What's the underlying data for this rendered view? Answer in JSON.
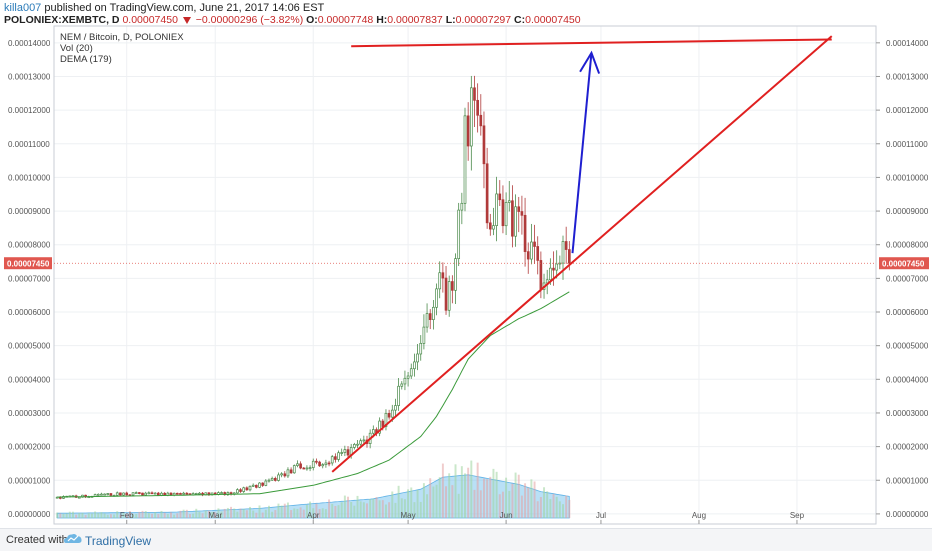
{
  "header": {
    "author": "killa007",
    "published_text": "published on TradingView.com, June 21, 2017 14:06 EST",
    "symbol": "POLONIEX:XEMBTC, D",
    "last_price": "0.00007450",
    "change": "−0.00000296 (−3.82%)",
    "o_label": "O:",
    "o_value": "0.00007748",
    "h_label": "H:",
    "h_value": "0.00007837",
    "l_label": "L:",
    "l_value": "0.00007297",
    "c_label": "C:",
    "c_value": "0.00007450"
  },
  "legend": {
    "title": "NEM / Bitcoin, D, POLONIEX",
    "vol": "Vol (20)",
    "dema": "DEMA (179)"
  },
  "footer": {
    "created_with": "Created with",
    "brand": "TradingView"
  },
  "colors": {
    "up": "#4a8a4a",
    "down": "#b03a3a",
    "trendline": "#e02020",
    "arrow": "#1f1fd0",
    "dema": "#3a9a3a",
    "volume_area": "#7fc6ef",
    "price_tag": "#e0574f"
  },
  "chart_data": {
    "type": "candlestick",
    "title": "NEM / Bitcoin, D, POLONIEX",
    "y_ticks": [
      "0.00014000",
      "0.00013000",
      "0.00012000",
      "0.00011000",
      "0.00010000",
      "0.00009000",
      "0.00008000",
      "0.00007000",
      "0.00006000",
      "0.00005000",
      "0.00004000",
      "0.00003000",
      "0.00002000",
      "0.00001000",
      "0.00000000"
    ],
    "y_tick_values": [
      0.00014,
      0.00013,
      0.00012,
      0.00011,
      0.0001,
      9e-05,
      8e-05,
      7e-05,
      6e-05,
      5e-05,
      4e-05,
      3e-05,
      2e-05,
      1e-05,
      0
    ],
    "ylim": [
      -3e-06,
      0.000145
    ],
    "x_ticks": [
      "Feb",
      "Mar",
      "Apr",
      "May",
      "Jun",
      "Jul",
      "Aug",
      "Sep"
    ],
    "x_tick_dates": [
      "2017-02-01",
      "2017-03-01",
      "2017-04-01",
      "2017-05-01",
      "2017-06-01",
      "2017-07-01",
      "2017-08-01",
      "2017-09-01"
    ],
    "xlim": [
      "2017-01-09",
      "2017-09-26"
    ],
    "last_price_label": "0.00007450",
    "last_price": 7.45e-05,
    "price_series": {
      "name": "XEMBTC",
      "start_date": "2017-01-10",
      "end_date": "2017-06-21",
      "anchors": [
        [
          "2017-01-10",
          4.8e-06
        ],
        [
          "2017-01-31",
          6e-06
        ],
        [
          "2017-02-20",
          5.8e-06
        ],
        [
          "2017-03-05",
          6e-06
        ],
        [
          "2017-03-18",
          9.5e-06
        ],
        [
          "2017-03-27",
          1.4e-05
        ],
        [
          "2017-04-03",
          1.5e-05
        ],
        [
          "2017-04-10",
          1.75e-05
        ],
        [
          "2017-04-17",
          2.1e-05
        ],
        [
          "2017-04-23",
          2.7e-05
        ],
        [
          "2017-04-28",
          3.6e-05
        ],
        [
          "2017-05-01",
          3.9e-05
        ],
        [
          "2017-05-04",
          4.5e-05
        ],
        [
          "2017-05-07",
          5.6e-05
        ],
        [
          "2017-05-10",
          7e-05
        ],
        [
          "2017-05-13",
          6.4e-05
        ],
        [
          "2017-05-16",
          7.2e-05
        ],
        [
          "2017-05-19",
          0.000112
        ],
        [
          "2017-05-21",
          0.00012
        ],
        [
          "2017-05-24",
          0.00011
        ],
        [
          "2017-05-26",
          9e-05
        ],
        [
          "2017-05-29",
          9e-05
        ],
        [
          "2017-06-02",
          8.8e-05
        ],
        [
          "2017-06-06",
          8.4e-05
        ],
        [
          "2017-06-09",
          7.8e-05
        ],
        [
          "2017-06-12",
          7e-05
        ],
        [
          "2017-06-15",
          7.6e-05
        ],
        [
          "2017-06-18",
          7.8e-05
        ],
        [
          "2017-06-21",
          7.45e-05
        ]
      ]
    },
    "dema_series": {
      "name": "DEMA (179)",
      "points": [
        [
          "2017-01-10",
          5e-06
        ],
        [
          "2017-02-15",
          5.5e-06
        ],
        [
          "2017-03-15",
          6e-06
        ],
        [
          "2017-04-01",
          8.5e-06
        ],
        [
          "2017-04-15",
          1.2e-05
        ],
        [
          "2017-04-25",
          1.6e-05
        ],
        [
          "2017-05-05",
          2.3e-05
        ],
        [
          "2017-05-10",
          2.9e-05
        ],
        [
          "2017-05-15",
          3.7e-05
        ],
        [
          "2017-05-20",
          4.6e-05
        ],
        [
          "2017-05-27",
          5.3e-05
        ],
        [
          "2017-06-05",
          5.8e-05
        ],
        [
          "2017-06-12",
          6.1e-05
        ],
        [
          "2017-06-21",
          6.6e-05
        ]
      ]
    },
    "volume_series": {
      "name": "Vol (20)",
      "points": [
        [
          "2017-01-10",
          0.1
        ],
        [
          "2017-02-15",
          0.12
        ],
        [
          "2017-03-15",
          0.2
        ],
        [
          "2017-04-01",
          0.3
        ],
        [
          "2017-04-20",
          0.4
        ],
        [
          "2017-05-05",
          0.6
        ],
        [
          "2017-05-12",
          0.85
        ],
        [
          "2017-05-20",
          0.9
        ],
        [
          "2017-05-28",
          0.8
        ],
        [
          "2017-06-05",
          0.7
        ],
        [
          "2017-06-12",
          0.55
        ],
        [
          "2017-06-21",
          0.45
        ]
      ]
    },
    "annotations": [
      {
        "type": "trendline",
        "name": "resistance",
        "points": [
          [
            "2017-04-13",
            0.000139
          ],
          [
            "2017-09-12",
            0.000141
          ]
        ]
      },
      {
        "type": "trendline",
        "name": "support",
        "points": [
          [
            "2017-04-07",
            1.25e-05
          ],
          [
            "2017-09-12",
            0.000142
          ]
        ]
      },
      {
        "type": "arrow",
        "name": "breakout-arrow",
        "points": [
          [
            "2017-06-22",
            7.75e-05
          ],
          [
            "2017-06-28",
            0.000137
          ]
        ]
      }
    ],
    "grid": true,
    "legend_position": "top-left"
  }
}
